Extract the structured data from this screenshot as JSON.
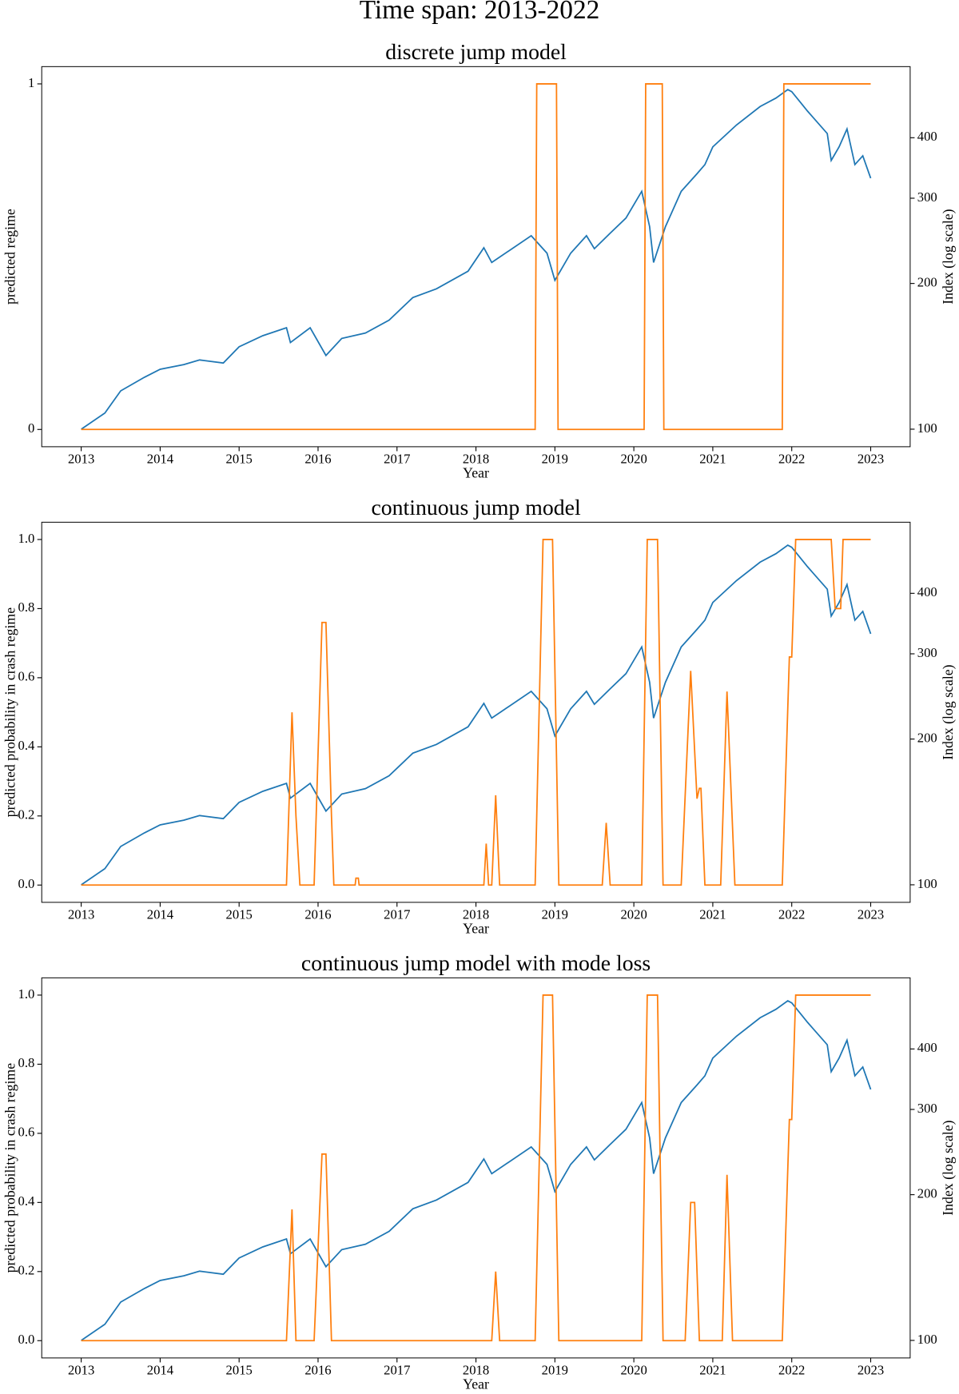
{
  "title": "Time span: 2013-2022",
  "chart_data": [
    {
      "type": "line",
      "title": "discrete jump model",
      "xlabel": "Year",
      "ylabel": "predicted regime",
      "y2label": "Index (log scale)",
      "xlim": [
        2012.5,
        2023.5
      ],
      "xticks": [
        2013,
        2014,
        2015,
        2016,
        2017,
        2018,
        2019,
        2020,
        2021,
        2022,
        2023
      ],
      "ylim": [
        -0.05,
        1.05
      ],
      "yticks": [
        0,
        1
      ],
      "y2lim": [
        92,
        561
      ],
      "y2ticks": [
        100,
        200,
        300,
        400
      ],
      "y2log": true,
      "series": [
        {
          "color": "#1f77b4",
          "axis": "y2",
          "x": [
            2013.0,
            2013.3,
            2013.5,
            2013.8,
            2014.0,
            2014.3,
            2014.5,
            2014.8,
            2015.0,
            2015.3,
            2015.6,
            2015.65,
            2015.9,
            2016.1,
            2016.3,
            2016.6,
            2016.9,
            2017.2,
            2017.5,
            2017.9,
            2018.1,
            2018.2,
            2018.7,
            2018.9,
            2019.0,
            2019.2,
            2019.4,
            2019.5,
            2019.7,
            2019.9,
            2020.1,
            2020.2,
            2020.25,
            2020.4,
            2020.6,
            2020.8,
            2020.9,
            2021.0,
            2021.3,
            2021.6,
            2021.8,
            2021.95,
            2022.0,
            2022.2,
            2022.45,
            2022.5,
            2022.6,
            2022.7,
            2022.8,
            2022.9,
            2023.0
          ],
          "values": [
            100,
            108,
            120,
            128,
            133,
            136,
            139,
            137,
            148,
            156,
            162,
            151,
            162,
            142,
            154,
            158,
            168,
            187,
            195,
            212,
            237,
            221,
            251,
            231,
            203,
            231,
            251,
            236,
            254,
            273,
            310,
            262,
            221,
            262,
            310,
            337,
            352,
            383,
            425,
            464,
            483,
            503,
            498,
            454,
            408,
            359,
            383,
            417,
            352,
            367,
            330
          ]
        },
        {
          "color": "#ff7f0e",
          "axis": "y",
          "x": [
            2013.0,
            2018.75,
            2018.77,
            2019.02,
            2019.04,
            2020.13,
            2020.15,
            2020.36,
            2020.38,
            2021.88,
            2021.9,
            2023.0
          ],
          "values": [
            0,
            0,
            1,
            1,
            0,
            0,
            1,
            1,
            0,
            0,
            1,
            1
          ]
        }
      ]
    },
    {
      "type": "line",
      "title": "continuous jump model",
      "xlabel": "Year",
      "ylabel": "predicted probability in crash regime",
      "y2label": "Index (log scale)",
      "xlim": [
        2012.5,
        2023.5
      ],
      "xticks": [
        2013,
        2014,
        2015,
        2016,
        2017,
        2018,
        2019,
        2020,
        2021,
        2022,
        2023
      ],
      "ylim": [
        -0.05,
        1.05
      ],
      "yticks": [
        {
          "value": 0,
          "label": "0.0"
        },
        0.2,
        0.4,
        0.6,
        0.8,
        {
          "value": 1,
          "label": "1.0"
        }
      ],
      "y2lim": [
        92,
        561
      ],
      "y2ticks": [
        100,
        200,
        300,
        400
      ],
      "y2log": true,
      "series": [
        {
          "color": "#1f77b4",
          "axis": "y2",
          "x": [
            2013.0,
            2013.3,
            2013.5,
            2013.8,
            2014.0,
            2014.3,
            2014.5,
            2014.8,
            2015.0,
            2015.3,
            2015.6,
            2015.65,
            2015.9,
            2016.1,
            2016.3,
            2016.6,
            2016.9,
            2017.2,
            2017.5,
            2017.9,
            2018.1,
            2018.2,
            2018.7,
            2018.9,
            2019.0,
            2019.2,
            2019.4,
            2019.5,
            2019.7,
            2019.9,
            2020.1,
            2020.2,
            2020.25,
            2020.4,
            2020.6,
            2020.8,
            2020.9,
            2021.0,
            2021.3,
            2021.6,
            2021.8,
            2021.95,
            2022.0,
            2022.2,
            2022.45,
            2022.5,
            2022.6,
            2022.7,
            2022.8,
            2022.9,
            2023.0
          ],
          "values": [
            100,
            108,
            120,
            128,
            133,
            136,
            139,
            137,
            148,
            156,
            162,
            151,
            162,
            142,
            154,
            158,
            168,
            187,
            195,
            212,
            237,
            221,
            251,
            231,
            203,
            231,
            251,
            236,
            254,
            273,
            310,
            262,
            221,
            262,
            310,
            337,
            352,
            383,
            425,
            464,
            483,
            503,
            498,
            454,
            408,
            359,
            383,
            417,
            352,
            367,
            330
          ]
        },
        {
          "color": "#ff7f0e",
          "axis": "y",
          "x": [
            2013.0,
            2015.6,
            2015.67,
            2015.72,
            2015.77,
            2015.95,
            2016.05,
            2016.1,
            2016.17,
            2016.2,
            2016.47,
            2016.48,
            2016.51,
            2016.52,
            2018.1,
            2018.13,
            2018.16,
            2018.2,
            2018.25,
            2018.3,
            2018.75,
            2018.85,
            2018.97,
            2019.05,
            2019.6,
            2019.65,
            2019.7,
            2020.1,
            2020.17,
            2020.3,
            2020.37,
            2020.6,
            2020.72,
            2020.8,
            2020.83,
            2020.85,
            2020.9,
            2021.1,
            2021.18,
            2021.28,
            2021.88,
            2021.97,
            2022.0,
            2022.05,
            2022.5,
            2022.55,
            2022.62,
            2022.65,
            2023.0
          ],
          "values": [
            0,
            0,
            0.5,
            0.2,
            0,
            0,
            0.76,
            0.76,
            0.2,
            0,
            0,
            0.02,
            0.02,
            0,
            0,
            0.12,
            0,
            0,
            0.26,
            0,
            0,
            1,
            1,
            0,
            0,
            0.18,
            0,
            0,
            1,
            1,
            0,
            0,
            0.62,
            0.25,
            0.28,
            0.28,
            0,
            0,
            0.56,
            0,
            0,
            0.66,
            0.66,
            1,
            1,
            0.8,
            0.8,
            1,
            1
          ]
        }
      ]
    },
    {
      "type": "line",
      "title": "continuous jump model with mode loss",
      "xlabel": "Year",
      "ylabel": "predicted probability in crash regime",
      "y2label": "Index (log scale)",
      "xlim": [
        2012.5,
        2023.5
      ],
      "xticks": [
        2013,
        2014,
        2015,
        2016,
        2017,
        2018,
        2019,
        2020,
        2021,
        2022,
        2023
      ],
      "ylim": [
        -0.05,
        1.05
      ],
      "yticks": [
        {
          "value": 0,
          "label": "0.0"
        },
        0.2,
        0.4,
        0.6,
        0.8,
        {
          "value": 1,
          "label": "1.0"
        }
      ],
      "y2lim": [
        92,
        561
      ],
      "y2ticks": [
        100,
        200,
        300,
        400
      ],
      "y2log": true,
      "series": [
        {
          "color": "#1f77b4",
          "axis": "y2",
          "x": [
            2013.0,
            2013.3,
            2013.5,
            2013.8,
            2014.0,
            2014.3,
            2014.5,
            2014.8,
            2015.0,
            2015.3,
            2015.6,
            2015.65,
            2015.9,
            2016.1,
            2016.3,
            2016.6,
            2016.9,
            2017.2,
            2017.5,
            2017.9,
            2018.1,
            2018.2,
            2018.7,
            2018.9,
            2019.0,
            2019.2,
            2019.4,
            2019.5,
            2019.7,
            2019.9,
            2020.1,
            2020.2,
            2020.25,
            2020.4,
            2020.6,
            2020.8,
            2020.9,
            2021.0,
            2021.3,
            2021.6,
            2021.8,
            2021.95,
            2022.0,
            2022.2,
            2022.45,
            2022.5,
            2022.6,
            2022.7,
            2022.8,
            2022.9,
            2023.0
          ],
          "values": [
            100,
            108,
            120,
            128,
            133,
            136,
            139,
            137,
            148,
            156,
            162,
            151,
            162,
            142,
            154,
            158,
            168,
            187,
            195,
            212,
            237,
            221,
            251,
            231,
            203,
            231,
            251,
            236,
            254,
            273,
            310,
            262,
            221,
            262,
            310,
            337,
            352,
            383,
            425,
            464,
            483,
            503,
            498,
            454,
            408,
            359,
            383,
            417,
            352,
            367,
            330
          ]
        },
        {
          "color": "#ff7f0e",
          "axis": "y",
          "x": [
            2013.0,
            2015.6,
            2015.67,
            2015.72,
            2015.95,
            2016.05,
            2016.1,
            2016.17,
            2018.2,
            2018.25,
            2018.3,
            2018.75,
            2018.85,
            2018.97,
            2019.05,
            2020.1,
            2020.17,
            2020.3,
            2020.37,
            2020.65,
            2020.72,
            2020.77,
            2020.83,
            2021.12,
            2021.18,
            2021.25,
            2021.88,
            2021.97,
            2022.0,
            2022.05,
            2023.0
          ],
          "values": [
            0,
            0,
            0.38,
            0,
            0,
            0.54,
            0.54,
            0,
            0,
            0.2,
            0,
            0,
            1,
            1,
            0,
            0,
            1,
            1,
            0,
            0,
            0.4,
            0.4,
            0,
            0,
            0.48,
            0,
            0,
            0.64,
            0.64,
            1,
            1
          ]
        }
      ]
    }
  ]
}
